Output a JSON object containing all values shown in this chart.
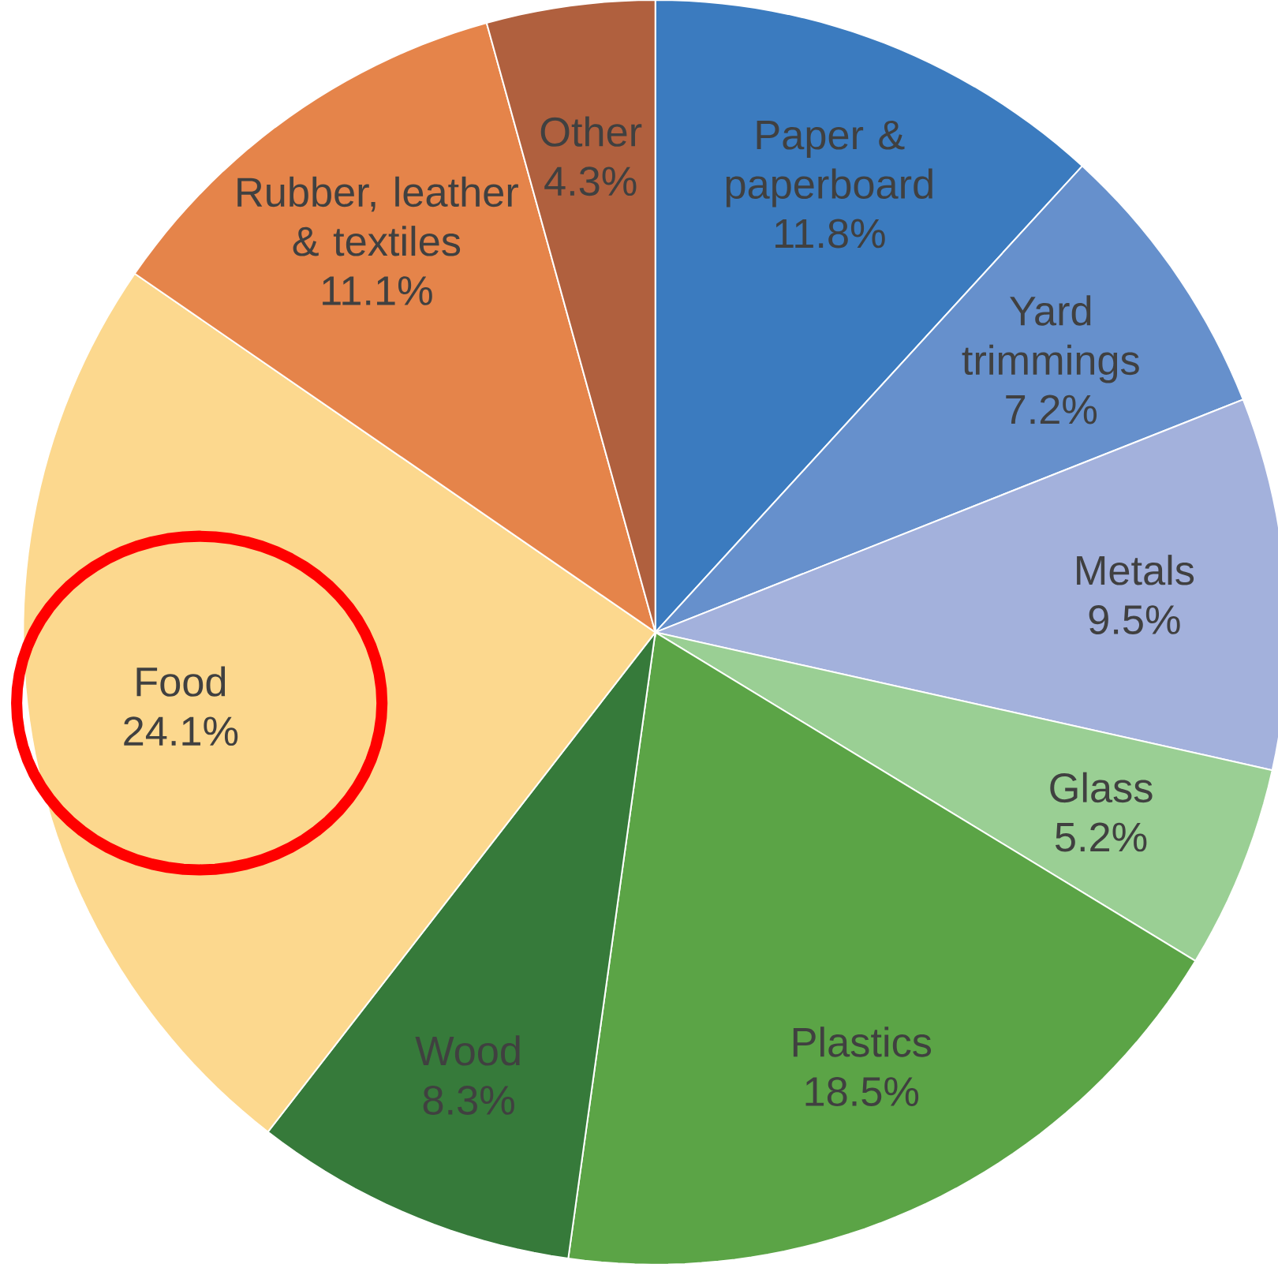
{
  "chart_data": {
    "type": "pie",
    "categories": [
      "Paper & paperboard",
      "Yard trimmings",
      "Metals",
      "Glass",
      "Plastics",
      "Wood",
      "Food",
      "Rubber, leather & textiles",
      "Other"
    ],
    "values": [
      11.8,
      7.2,
      9.5,
      5.2,
      18.5,
      8.3,
      24.1,
      11.1,
      4.3
    ],
    "value_labels": [
      "11.8%",
      "7.2%",
      "9.5%",
      "5.2%",
      "18.5%",
      "8.3%",
      "24.1%",
      "11.1%",
      "4.3%"
    ],
    "colors": [
      "#3b7bbf",
      "#6690cc",
      "#a3b1dc",
      "#9acf94",
      "#5ba446",
      "#367a3a",
      "#fcd88e",
      "#e5844a",
      "#b0603e"
    ]
  }
}
